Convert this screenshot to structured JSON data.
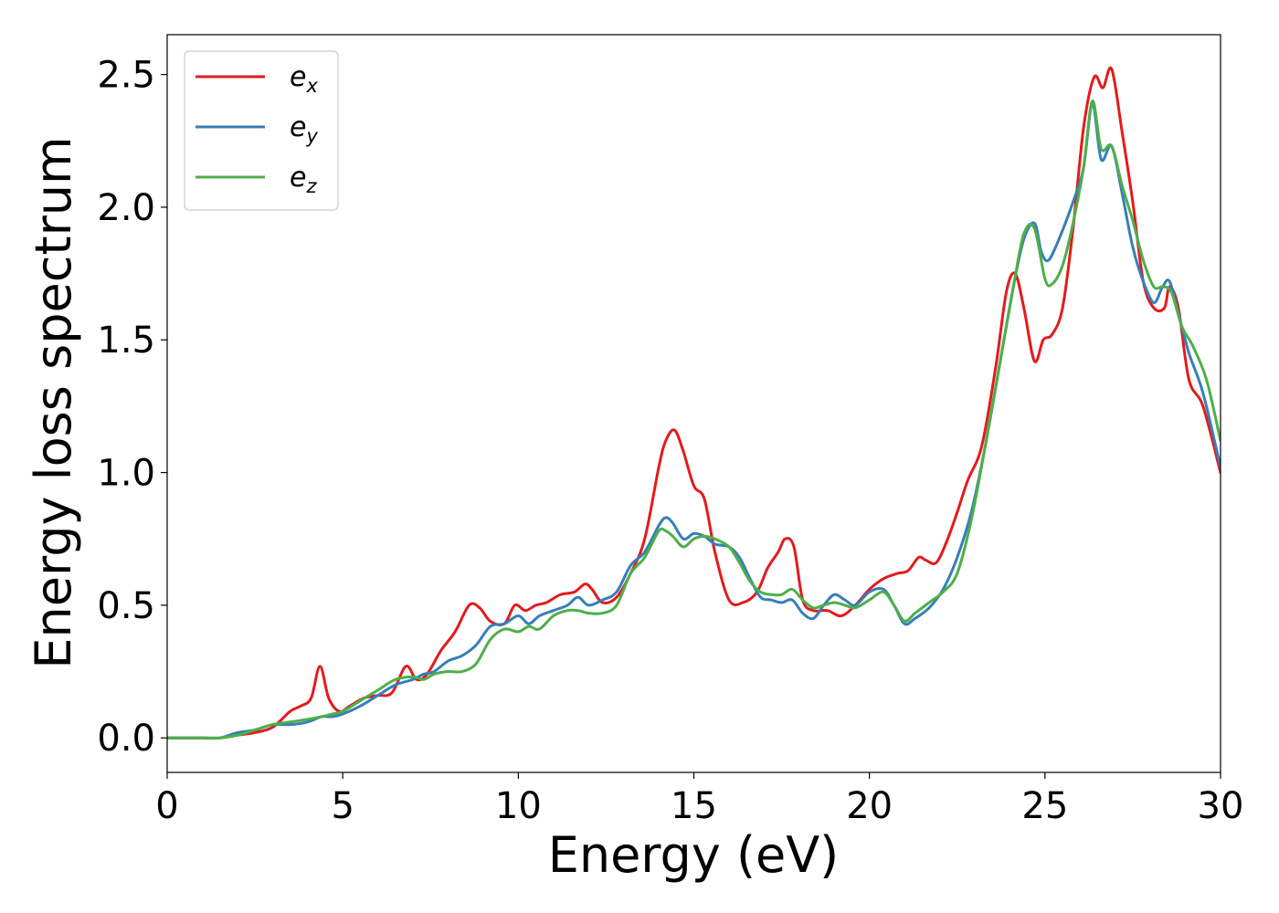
{
  "chart_data": {
    "type": "line",
    "xlabel": "Energy (eV)",
    "ylabel": "Energy loss spectrum",
    "xlim": [
      0,
      30
    ],
    "ylim": [
      -0.13,
      2.65
    ],
    "xticks": [
      0,
      5,
      10,
      15,
      20,
      25,
      30
    ],
    "yticks": [
      0.0,
      0.5,
      1.0,
      1.5,
      2.0,
      2.5
    ],
    "xtick_labels": [
      "0",
      "5",
      "10",
      "15",
      "20",
      "25",
      "30"
    ],
    "ytick_labels": [
      "0.0",
      "0.5",
      "1.0",
      "1.5",
      "2.0",
      "2.5"
    ],
    "grid": false,
    "legend_position": "top-left",
    "series": [
      {
        "name": "e_x",
        "label_base": "e",
        "label_sub": "x",
        "color": "#e41a1c",
        "x": [
          0,
          1,
          1.5,
          2,
          2.5,
          3,
          3.5,
          3.8,
          4.1,
          4.35,
          4.6,
          4.9,
          5.2,
          5.6,
          6,
          6.4,
          6.8,
          7.1,
          7.4,
          7.8,
          8.2,
          8.6,
          8.9,
          9.2,
          9.6,
          9.9,
          10.2,
          10.5,
          10.8,
          11.2,
          11.6,
          11.9,
          12.1,
          12.4,
          12.8,
          13.2,
          13.6,
          14,
          14.2,
          14.45,
          14.7,
          15,
          15.3,
          15.6,
          16,
          16.4,
          16.8,
          17.1,
          17.4,
          17.6,
          17.85,
          18.1,
          18.4,
          18.8,
          19.2,
          19.6,
          20,
          20.4,
          20.8,
          21.1,
          21.4,
          21.6,
          21.9,
          22.2,
          22.5,
          22.8,
          23.2,
          23.6,
          23.9,
          24.15,
          24.4,
          24.7,
          24.95,
          25.2,
          25.5,
          25.8,
          26.1,
          26.4,
          26.65,
          26.9,
          27.2,
          27.5,
          27.8,
          28.1,
          28.4,
          28.55,
          28.8,
          29.1,
          29.5,
          30
        ],
        "y": [
          0.0,
          0.0,
          0.0,
          0.01,
          0.02,
          0.04,
          0.1,
          0.12,
          0.15,
          0.27,
          0.15,
          0.1,
          0.12,
          0.15,
          0.16,
          0.17,
          0.27,
          0.22,
          0.24,
          0.33,
          0.4,
          0.5,
          0.49,
          0.44,
          0.43,
          0.5,
          0.48,
          0.5,
          0.51,
          0.54,
          0.55,
          0.58,
          0.56,
          0.51,
          0.53,
          0.62,
          0.75,
          1.02,
          1.12,
          1.16,
          1.08,
          0.95,
          0.9,
          0.7,
          0.52,
          0.51,
          0.55,
          0.64,
          0.7,
          0.75,
          0.72,
          0.52,
          0.48,
          0.48,
          0.46,
          0.5,
          0.56,
          0.6,
          0.62,
          0.63,
          0.68,
          0.67,
          0.66,
          0.74,
          0.85,
          0.97,
          1.1,
          1.4,
          1.68,
          1.75,
          1.62,
          1.42,
          1.5,
          1.52,
          1.62,
          1.92,
          2.3,
          2.49,
          2.45,
          2.52,
          2.28,
          2.02,
          1.72,
          1.62,
          1.62,
          1.7,
          1.62,
          1.35,
          1.25,
          1.0
        ]
      },
      {
        "name": "e_y",
        "label_base": "e",
        "label_sub": "y",
        "color": "#377eb8",
        "x": [
          0,
          1,
          1.5,
          2,
          2.5,
          3,
          3.5,
          4,
          4.4,
          4.7,
          5,
          5.5,
          6,
          6.5,
          7,
          7.3,
          7.6,
          8,
          8.4,
          8.8,
          9.2,
          9.6,
          10,
          10.3,
          10.6,
          11,
          11.4,
          11.7,
          12,
          12.4,
          12.8,
          13.2,
          13.6,
          14,
          14.2,
          14.4,
          14.7,
          15,
          15.3,
          15.6,
          16,
          16.3,
          16.6,
          16.9,
          17.2,
          17.5,
          17.8,
          18.1,
          18.4,
          18.7,
          19,
          19.3,
          19.6,
          20,
          20.4,
          20.7,
          21,
          21.3,
          21.7,
          22.1,
          22.5,
          22.9,
          23.3,
          23.7,
          24.1,
          24.4,
          24.7,
          24.9,
          25.1,
          25.4,
          25.8,
          26.1,
          26.35,
          26.6,
          26.9,
          27.2,
          27.5,
          27.8,
          28.1,
          28.35,
          28.55,
          28.8,
          29.1,
          29.5,
          30
        ],
        "y": [
          0.0,
          0.0,
          0.0,
          0.02,
          0.03,
          0.05,
          0.05,
          0.06,
          0.08,
          0.08,
          0.09,
          0.12,
          0.16,
          0.2,
          0.22,
          0.24,
          0.25,
          0.29,
          0.31,
          0.35,
          0.42,
          0.43,
          0.46,
          0.43,
          0.46,
          0.48,
          0.5,
          0.53,
          0.5,
          0.52,
          0.55,
          0.65,
          0.7,
          0.8,
          0.83,
          0.81,
          0.75,
          0.77,
          0.76,
          0.73,
          0.72,
          0.68,
          0.6,
          0.53,
          0.52,
          0.51,
          0.52,
          0.47,
          0.45,
          0.5,
          0.54,
          0.52,
          0.5,
          0.55,
          0.56,
          0.5,
          0.43,
          0.45,
          0.49,
          0.56,
          0.68,
          0.85,
          1.1,
          1.4,
          1.7,
          1.88,
          1.94,
          1.83,
          1.8,
          1.88,
          2.02,
          2.15,
          2.39,
          2.18,
          2.23,
          2.05,
          1.85,
          1.72,
          1.64,
          1.7,
          1.72,
          1.6,
          1.45,
          1.3,
          1.02
        ]
      },
      {
        "name": "e_z",
        "label_base": "e",
        "label_sub": "z",
        "color": "#4daf4a",
        "x": [
          0,
          1,
          1.5,
          2,
          2.5,
          3,
          3.5,
          4,
          4.4,
          4.7,
          5,
          5.5,
          6,
          6.5,
          7,
          7.3,
          7.6,
          8,
          8.4,
          8.8,
          9.2,
          9.6,
          10,
          10.3,
          10.6,
          11,
          11.4,
          11.7,
          12,
          12.4,
          12.8,
          13.2,
          13.6,
          14,
          14.2,
          14.4,
          14.7,
          15,
          15.3,
          15.6,
          16,
          16.3,
          16.6,
          16.9,
          17.2,
          17.5,
          17.8,
          18.1,
          18.4,
          18.7,
          19,
          19.3,
          19.6,
          20,
          20.4,
          20.7,
          21,
          21.3,
          21.7,
          22.1,
          22.5,
          22.9,
          23.3,
          23.7,
          24.1,
          24.4,
          24.7,
          25,
          25.2,
          25.5,
          25.8,
          26.1,
          26.35,
          26.6,
          26.9,
          27.2,
          27.5,
          27.8,
          28.1,
          28.35,
          28.6,
          28.9,
          29.2,
          29.6,
          30
        ],
        "y": [
          0.0,
          0.0,
          0.0,
          0.01,
          0.03,
          0.05,
          0.06,
          0.07,
          0.08,
          0.09,
          0.1,
          0.14,
          0.18,
          0.22,
          0.23,
          0.22,
          0.24,
          0.25,
          0.25,
          0.28,
          0.37,
          0.41,
          0.4,
          0.42,
          0.41,
          0.46,
          0.48,
          0.48,
          0.47,
          0.47,
          0.5,
          0.62,
          0.68,
          0.78,
          0.78,
          0.76,
          0.72,
          0.75,
          0.76,
          0.75,
          0.72,
          0.66,
          0.59,
          0.55,
          0.54,
          0.54,
          0.56,
          0.52,
          0.49,
          0.5,
          0.51,
          0.5,
          0.49,
          0.52,
          0.55,
          0.5,
          0.44,
          0.47,
          0.51,
          0.55,
          0.62,
          0.82,
          1.1,
          1.4,
          1.7,
          1.9,
          1.92,
          1.73,
          1.71,
          1.78,
          1.94,
          2.15,
          2.4,
          2.22,
          2.23,
          2.08,
          1.95,
          1.8,
          1.7,
          1.7,
          1.68,
          1.55,
          1.48,
          1.35,
          1.12
        ]
      }
    ]
  }
}
